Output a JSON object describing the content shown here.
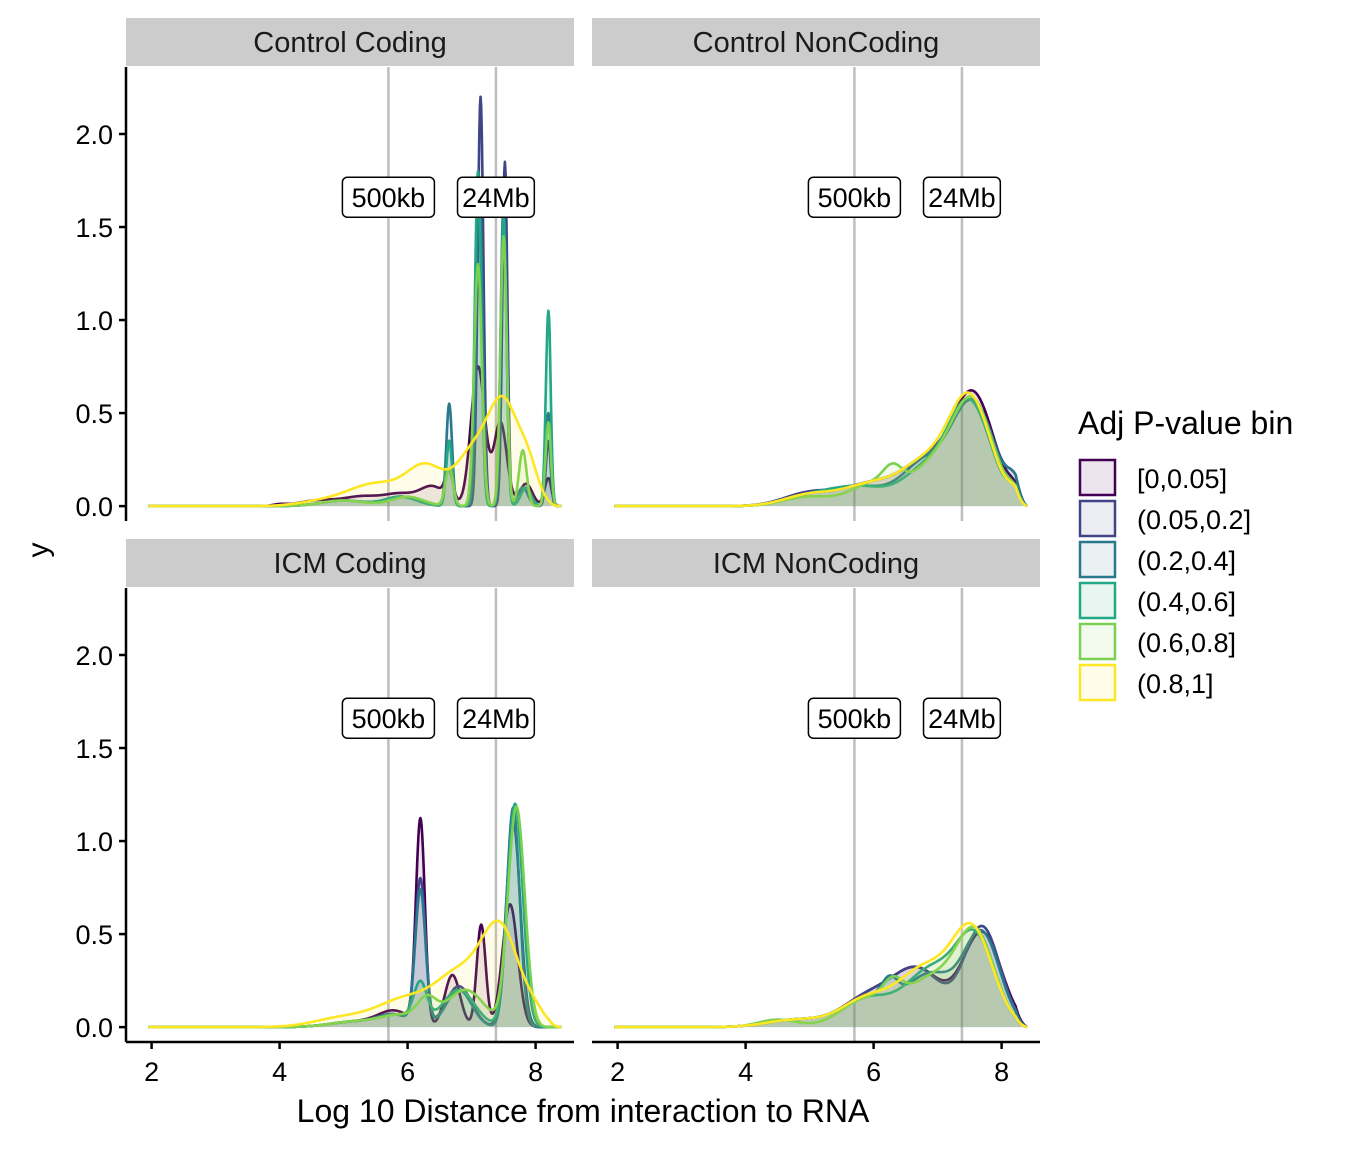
{
  "chart_data": {
    "type": "area",
    "subtype": "faceted-density",
    "xlabel": "Log 10 Distance from interaction to RNA",
    "ylabel": "y",
    "xlim": [
      1.6,
      8.6
    ],
    "ylim": [
      -0.08,
      2.36
    ],
    "x_ticks": [
      2,
      4,
      6,
      8
    ],
    "y_ticks": [
      0.0,
      0.5,
      1.0,
      1.5,
      2.0
    ],
    "x_tick_labels": [
      "2",
      "4",
      "6",
      "8"
    ],
    "y_tick_labels": [
      "0.0",
      "0.5",
      "1.0",
      "1.5",
      "2.0"
    ],
    "grid": false,
    "legend_placement": "right",
    "legend": {
      "title": "Adj P-value bin",
      "entries": [
        {
          "label": "[0,0.05]",
          "color": "#440154"
        },
        {
          "label": "(0.05,0.2]",
          "color": "#414487"
        },
        {
          "label": "(0.2,0.4]",
          "color": "#2A788E"
        },
        {
          "label": "(0.4,0.6]",
          "color": "#22A884"
        },
        {
          "label": "(0.6,0.8]",
          "color": "#7AD151"
        },
        {
          "label": "(0.8,1]",
          "color": "#FDE725"
        }
      ]
    },
    "reference_lines": [
      {
        "x": 5.7,
        "label": "500kb"
      },
      {
        "x": 7.38,
        "label": "24Mb"
      }
    ],
    "annotation_y": 1.66,
    "panel_order": [
      "Control Coding",
      "Control NonCoding",
      "ICM Coding",
      "ICM NonCoding"
    ],
    "panels": [
      {
        "title": "Control Coding",
        "series": [
          {
            "name": "[0,0.05]",
            "peaks": [
              [
                4.0,
                0.008,
                0.1
              ],
              [
                4.6,
                0.03,
                0.3
              ],
              [
                5.3,
                0.05,
                0.3
              ],
              [
                5.9,
                0.06,
                0.25
              ],
              [
                6.4,
                0.1,
                0.2
              ],
              [
                6.65,
                0.15,
                0.06
              ],
              [
                7.1,
                0.75,
                0.11
              ],
              [
                7.45,
                0.45,
                0.1
              ],
              [
                7.85,
                0.12,
                0.1
              ],
              [
                8.2,
                0.15,
                0.06
              ]
            ]
          },
          {
            "name": "(0.05,0.2]",
            "peaks": [
              [
                5.0,
                0.03,
                0.35
              ],
              [
                5.9,
                0.05,
                0.25
              ],
              [
                6.65,
                0.35,
                0.05
              ],
              [
                7.14,
                2.2,
                0.045
              ],
              [
                7.52,
                1.85,
                0.04
              ],
              [
                7.8,
                0.1,
                0.08
              ],
              [
                8.2,
                0.35,
                0.04
              ]
            ]
          },
          {
            "name": "(0.2,0.4]",
            "peaks": [
              [
                5.0,
                0.03,
                0.35
              ],
              [
                5.9,
                0.05,
                0.25
              ],
              [
                6.65,
                0.55,
                0.045
              ],
              [
                7.12,
                1.75,
                0.05
              ],
              [
                7.5,
                1.65,
                0.045
              ],
              [
                7.8,
                0.1,
                0.08
              ],
              [
                8.2,
                0.5,
                0.045
              ]
            ]
          },
          {
            "name": "(0.4,0.6]",
            "peaks": [
              [
                5.0,
                0.03,
                0.35
              ],
              [
                5.9,
                0.05,
                0.25
              ],
              [
                6.65,
                0.35,
                0.045
              ],
              [
                7.1,
                1.8,
                0.05
              ],
              [
                7.5,
                1.55,
                0.045
              ],
              [
                7.85,
                0.1,
                0.08
              ],
              [
                8.2,
                1.05,
                0.04
              ]
            ]
          },
          {
            "name": "(0.6,0.8]",
            "peaks": [
              [
                5.0,
                0.03,
                0.35
              ],
              [
                6.0,
                0.05,
                0.25
              ],
              [
                6.65,
                0.2,
                0.06
              ],
              [
                7.1,
                1.3,
                0.06
              ],
              [
                7.5,
                1.45,
                0.05
              ],
              [
                7.8,
                0.3,
                0.06
              ],
              [
                8.2,
                0.45,
                0.045
              ]
            ]
          },
          {
            "name": "(0.8,1]",
            "peaks": [
              [
                4.6,
                0.02,
                0.35
              ],
              [
                5.5,
                0.12,
                0.45
              ],
              [
                6.3,
                0.2,
                0.3
              ],
              [
                7.0,
                0.25,
                0.25
              ],
              [
                7.5,
                0.55,
                0.25
              ],
              [
                7.9,
                0.15,
                0.15
              ]
            ]
          }
        ]
      },
      {
        "title": "Control NonCoding",
        "series": [
          {
            "name": "[0,0.05]",
            "peaks": [
              [
                5.0,
                0.06,
                0.4
              ],
              [
                6.0,
                0.12,
                0.45
              ],
              [
                6.8,
                0.2,
                0.35
              ],
              [
                7.55,
                0.6,
                0.33
              ],
              [
                8.2,
                0.05,
                0.1
              ]
            ]
          },
          {
            "name": "(0.05,0.2]",
            "peaks": [
              [
                5.0,
                0.07,
                0.4
              ],
              [
                6.0,
                0.12,
                0.45
              ],
              [
                6.8,
                0.2,
                0.35
              ],
              [
                7.55,
                0.55,
                0.35
              ],
              [
                8.2,
                0.08,
                0.1
              ]
            ]
          },
          {
            "name": "(0.2,0.4]",
            "peaks": [
              [
                5.0,
                0.05,
                0.4
              ],
              [
                5.8,
                0.1,
                0.45
              ],
              [
                6.8,
                0.22,
                0.35
              ],
              [
                7.55,
                0.55,
                0.33
              ],
              [
                8.2,
                0.1,
                0.12
              ]
            ]
          },
          {
            "name": "(0.4,0.6]",
            "peaks": [
              [
                5.0,
                0.05,
                0.4
              ],
              [
                5.8,
                0.1,
                0.45
              ],
              [
                6.8,
                0.18,
                0.35
              ],
              [
                7.5,
                0.55,
                0.33
              ],
              [
                8.2,
                0.06,
                0.1
              ]
            ]
          },
          {
            "name": "(0.6,0.8]",
            "peaks": [
              [
                5.0,
                0.05,
                0.4
              ],
              [
                6.0,
                0.12,
                0.35
              ],
              [
                6.3,
                0.1,
                0.15
              ],
              [
                6.9,
                0.2,
                0.35
              ],
              [
                7.55,
                0.55,
                0.32
              ],
              [
                8.2,
                0.05,
                0.1
              ]
            ]
          },
          {
            "name": "(0.8,1]",
            "peaks": [
              [
                5.0,
                0.06,
                0.4
              ],
              [
                6.0,
                0.12,
                0.45
              ],
              [
                6.8,
                0.2,
                0.35
              ],
              [
                7.5,
                0.58,
                0.33
              ],
              [
                8.2,
                0.05,
                0.1
              ]
            ]
          }
        ]
      },
      {
        "title": "ICM Coding",
        "series": [
          {
            "name": "[0,0.05]",
            "peaks": [
              [
                5.2,
                0.03,
                0.4
              ],
              [
                5.8,
                0.08,
                0.25
              ],
              [
                6.2,
                1.1,
                0.07
              ],
              [
                6.7,
                0.28,
                0.12
              ],
              [
                7.15,
                0.55,
                0.07
              ],
              [
                7.6,
                0.66,
                0.12
              ]
            ]
          },
          {
            "name": "(0.05,0.2]",
            "peaks": [
              [
                5.2,
                0.03,
                0.4
              ],
              [
                5.8,
                0.06,
                0.25
              ],
              [
                6.2,
                0.78,
                0.08
              ],
              [
                6.8,
                0.22,
                0.2
              ],
              [
                7.65,
                1.1,
                0.11
              ]
            ]
          },
          {
            "name": "(0.2,0.4]",
            "peaks": [
              [
                5.2,
                0.03,
                0.4
              ],
              [
                5.8,
                0.06,
                0.25
              ],
              [
                6.2,
                0.72,
                0.08
              ],
              [
                6.8,
                0.2,
                0.2
              ],
              [
                7.65,
                1.18,
                0.1
              ]
            ]
          },
          {
            "name": "(0.4,0.6]",
            "peaks": [
              [
                5.2,
                0.03,
                0.4
              ],
              [
                5.9,
                0.06,
                0.3
              ],
              [
                6.2,
                0.2,
                0.1
              ],
              [
                6.8,
                0.2,
                0.25
              ],
              [
                7.68,
                1.2,
                0.12
              ]
            ]
          },
          {
            "name": "(0.6,0.8]",
            "peaks": [
              [
                5.2,
                0.03,
                0.4
              ],
              [
                5.9,
                0.06,
                0.3
              ],
              [
                6.3,
                0.12,
                0.15
              ],
              [
                6.9,
                0.2,
                0.3
              ],
              [
                7.7,
                1.18,
                0.13
              ]
            ]
          },
          {
            "name": "(0.8,1]",
            "peaks": [
              [
                5.0,
                0.05,
                0.45
              ],
              [
                6.0,
                0.15,
                0.45
              ],
              [
                6.8,
                0.25,
                0.35
              ],
              [
                7.45,
                0.52,
                0.3
              ],
              [
                8.0,
                0.05,
                0.15
              ]
            ]
          }
        ]
      },
      {
        "title": "ICM NonCoding",
        "series": [
          {
            "name": "[0,0.05]",
            "peaks": [
              [
                4.8,
                0.04,
                0.45
              ],
              [
                5.9,
                0.15,
                0.4
              ],
              [
                6.7,
                0.3,
                0.4
              ],
              [
                7.7,
                0.5,
                0.3
              ]
            ]
          },
          {
            "name": "(0.05,0.2]",
            "peaks": [
              [
                4.8,
                0.04,
                0.45
              ],
              [
                5.9,
                0.15,
                0.4
              ],
              [
                6.7,
                0.3,
                0.4
              ],
              [
                7.7,
                0.53,
                0.28
              ]
            ]
          },
          {
            "name": "(0.2,0.4]",
            "peaks": [
              [
                4.8,
                0.04,
                0.45
              ],
              [
                5.9,
                0.15,
                0.4
              ],
              [
                6.25,
                0.1,
                0.12
              ],
              [
                6.9,
                0.28,
                0.4
              ],
              [
                7.7,
                0.48,
                0.28
              ]
            ]
          },
          {
            "name": "(0.4,0.6]",
            "peaks": [
              [
                4.8,
                0.04,
                0.45
              ],
              [
                5.9,
                0.15,
                0.4
              ],
              [
                6.9,
                0.3,
                0.4
              ],
              [
                7.6,
                0.45,
                0.3
              ]
            ]
          },
          {
            "name": "(0.6,0.8]",
            "peaks": [
              [
                4.5,
                0.04,
                0.3
              ],
              [
                5.9,
                0.15,
                0.4
              ],
              [
                6.3,
                0.1,
                0.15
              ],
              [
                6.9,
                0.25,
                0.4
              ],
              [
                7.6,
                0.48,
                0.3
              ]
            ]
          },
          {
            "name": "(0.8,1]",
            "peaks": [
              [
                4.8,
                0.04,
                0.45
              ],
              [
                5.9,
                0.15,
                0.4
              ],
              [
                6.8,
                0.3,
                0.4
              ],
              [
                7.55,
                0.5,
                0.32
              ]
            ]
          }
        ]
      }
    ]
  }
}
